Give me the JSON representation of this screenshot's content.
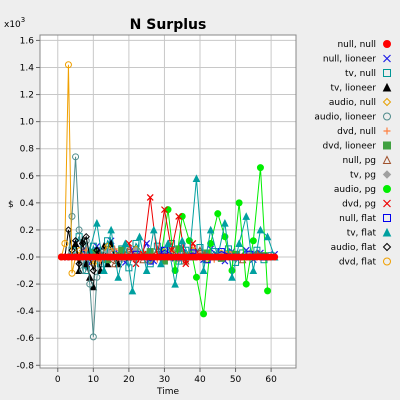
{
  "chart_data": {
    "type": "line",
    "title": "N Surplus",
    "xlabel": "Time",
    "ylabel": "$",
    "y_multiplier": "x10",
    "y_multiplier_exp": "3",
    "xlim": [
      -5,
      67
    ],
    "ylim": [
      -0.82,
      1.64
    ],
    "x_ticks": [
      0,
      10,
      20,
      30,
      40,
      50,
      60
    ],
    "y_ticks": [
      -0.8,
      -0.6,
      -0.4,
      -0.2,
      0.0,
      0.2,
      0.4,
      0.6,
      0.8,
      1.0,
      1.2,
      1.4,
      1.6
    ],
    "y_tick_labels": [
      "-0.8",
      "-0.6",
      "-0.4",
      "-0.2",
      "-0.0",
      "0.2",
      "0.4",
      "0.6",
      "0.8",
      "1.0",
      "1.2",
      "1.4",
      "1.6"
    ],
    "grid": true,
    "legend_position": "right",
    "series": [
      {
        "name": "null, null",
        "color": "#ff0000",
        "marker": "circle-filled",
        "x": [
          1,
          2,
          3,
          4,
          5,
          6,
          7,
          8,
          9,
          10,
          11,
          12,
          13,
          14,
          15,
          16,
          17,
          18,
          19,
          20,
          21,
          22,
          23,
          24,
          25,
          26,
          27,
          28,
          29,
          30,
          31,
          32,
          33,
          34,
          35,
          36,
          37,
          38,
          39,
          40,
          41,
          42,
          43,
          44,
          45,
          46,
          47,
          48,
          49,
          50,
          51,
          52,
          53,
          54,
          55,
          56,
          57,
          58,
          59,
          60,
          61
        ],
        "y": [
          0.0,
          0.0,
          0.0,
          0.0,
          0.0,
          0.0,
          0.0,
          0.0,
          0.0,
          0.0,
          0.0,
          0.0,
          0.0,
          0.0,
          0.0,
          0.0,
          0.0,
          0.0,
          0.0,
          0.0,
          0.0,
          0.0,
          0.0,
          0.0,
          0.0,
          0.0,
          0.0,
          0.0,
          0.0,
          0.0,
          0.0,
          0.0,
          0.0,
          0.0,
          0.0,
          0.0,
          0.0,
          0.0,
          0.0,
          0.0,
          0.0,
          0.0,
          0.0,
          0.0,
          0.0,
          0.0,
          0.0,
          0.0,
          0.0,
          0.0,
          0.0,
          0.0,
          0.0,
          0.0,
          0.0,
          0.0,
          0.0,
          0.0,
          0.0,
          0.0,
          0.0
        ]
      },
      {
        "name": "null, lioneer",
        "color": "#1e1ee6",
        "marker": "x",
        "x": [
          3,
          5,
          7,
          9,
          11,
          13,
          15,
          17,
          19,
          21,
          23,
          25,
          27,
          29,
          31,
          33,
          35,
          37,
          39,
          41,
          43,
          45,
          47,
          49,
          51,
          53,
          55,
          57,
          59,
          61
        ],
        "y": [
          0.0,
          0.1,
          0.05,
          -0.05,
          0.08,
          -0.02,
          0.12,
          0.02,
          -0.04,
          0.06,
          0.0,
          0.1,
          -0.03,
          0.05,
          0.02,
          -0.01,
          0.07,
          0.0,
          0.03,
          -0.02,
          0.06,
          0.01,
          -0.03,
          0.04,
          0.0,
          0.05,
          -0.02,
          0.03,
          0.0,
          0.02
        ]
      },
      {
        "name": "tv, null",
        "color": "#009696",
        "marker": "square-open",
        "x": [
          4,
          6,
          8,
          10,
          12,
          14,
          16,
          18,
          20,
          22,
          24,
          26,
          28,
          30,
          32,
          34,
          36,
          38,
          40,
          42,
          44,
          46,
          48,
          50,
          52,
          54,
          56,
          58,
          60
        ],
        "y": [
          0.05,
          0.15,
          -0.1,
          0.08,
          -0.05,
          0.12,
          0.0,
          0.06,
          -0.08,
          0.1,
          0.02,
          -0.05,
          0.08,
          0.0,
          0.1,
          -0.03,
          0.05,
          0.0,
          0.07,
          -0.02,
          0.04,
          0.0,
          0.06,
          -0.04,
          0.03,
          0.0,
          0.05,
          -0.02,
          0.01
        ]
      },
      {
        "name": "tv, lioneer",
        "color": "#000000",
        "marker": "triangle-filled",
        "x": [
          5,
          6,
          7,
          8,
          9,
          10,
          11,
          12,
          13,
          14,
          15,
          16,
          17,
          18,
          19,
          20
        ],
        "y": [
          0.1,
          -0.1,
          0.12,
          -0.05,
          -0.15,
          -0.22,
          0.05,
          -0.1,
          0.08,
          -0.05,
          0.1,
          0.0,
          -0.05,
          0.02,
          0.0,
          0.0
        ]
      },
      {
        "name": "audio, null",
        "color": "#e6a000",
        "marker": "diamond-open",
        "x": [
          6,
          10,
          14,
          18,
          22,
          26,
          30,
          34,
          38,
          42,
          46,
          50,
          54,
          58
        ],
        "y": [
          0.05,
          -0.05,
          0.08,
          0.0,
          0.06,
          -0.03,
          0.04,
          0.0,
          0.05,
          -0.02,
          0.03,
          0.0,
          0.02,
          0.0
        ]
      },
      {
        "name": "audio, lioneer",
        "color": "#508c8c",
        "marker": "circle-open",
        "x": [
          3,
          4,
          5,
          6,
          7,
          8,
          9,
          10,
          11,
          12,
          13
        ],
        "y": [
          0.0,
          0.3,
          0.74,
          0.2,
          -0.1,
          0.12,
          -0.2,
          -0.59,
          -0.15,
          0.05,
          0.0
        ]
      },
      {
        "name": "dvd, null",
        "color": "#ff8040",
        "marker": "plus",
        "x": [
          8,
          12,
          16,
          20,
          24,
          28,
          32,
          36,
          40,
          44,
          48,
          52,
          56,
          60
        ],
        "y": [
          0.05,
          -0.03,
          0.06,
          0.0,
          0.04,
          -0.02,
          0.05,
          0.0,
          0.03,
          -0.02,
          0.04,
          0.0,
          0.02,
          0.0
        ]
      },
      {
        "name": "dvd, lioneer",
        "color": "#40a040",
        "marker": "square-filled",
        "x": [
          10,
          14,
          18,
          22,
          26,
          30,
          34,
          38,
          42,
          46,
          50,
          54,
          58
        ],
        "y": [
          0.03,
          -0.02,
          0.05,
          0.0,
          0.04,
          -0.03,
          0.06,
          0.0,
          0.03,
          -0.01,
          0.02,
          0.0,
          0.01
        ]
      },
      {
        "name": "null, pg",
        "color": "#a0522d",
        "marker": "triangle-open",
        "x": [
          12,
          16,
          20,
          24,
          28,
          32,
          36,
          40,
          44,
          48,
          52,
          56,
          60
        ],
        "y": [
          0.02,
          -0.05,
          0.06,
          -0.02,
          0.04,
          0.0,
          -0.03,
          0.05,
          0.0,
          0.02,
          -0.02,
          0.03,
          0.0
        ]
      },
      {
        "name": "tv, pg",
        "color": "#a0a0a0",
        "marker": "diamond-filled",
        "x": [
          14,
          18,
          22,
          26,
          30,
          34,
          38,
          42,
          46,
          50,
          54,
          58
        ],
        "y": [
          0.04,
          -0.02,
          0.05,
          0.0,
          0.03,
          -0.02,
          0.04,
          0.0,
          0.02,
          -0.01,
          0.03,
          0.0
        ]
      },
      {
        "name": "audio, pg",
        "color": "#00ee00",
        "marker": "circle-filled",
        "x": [
          29,
          31,
          33,
          35,
          37,
          39,
          41,
          43,
          45,
          47,
          49,
          51,
          53,
          55,
          57,
          59
        ],
        "y": [
          0.0,
          0.35,
          -0.1,
          0.3,
          0.12,
          -0.15,
          -0.42,
          0.1,
          0.32,
          0.15,
          -0.1,
          0.4,
          -0.2,
          0.12,
          0.66,
          -0.25
        ]
      },
      {
        "name": "dvd, pg",
        "color": "#ee0000",
        "marker": "x",
        "x": [
          20,
          22,
          24,
          26,
          28,
          30,
          32,
          34,
          36,
          38,
          40
        ],
        "y": [
          0.1,
          -0.05,
          0.02,
          0.44,
          0.0,
          0.35,
          0.05,
          0.3,
          -0.05,
          0.1,
          0.0
        ]
      },
      {
        "name": "null, flat",
        "color": "#0000ee",
        "marker": "square-open",
        "x": [
          22,
          26,
          30,
          34,
          38,
          42,
          46,
          50,
          54,
          58
        ],
        "y": [
          0.02,
          -0.03,
          0.05,
          0.0,
          0.03,
          -0.02,
          0.04,
          0.0,
          0.02,
          0.0
        ]
      },
      {
        "name": "tv, flat",
        "color": "#00a0a0",
        "marker": "triangle-filled",
        "x": [
          9,
          11,
          13,
          15,
          17,
          19,
          21,
          23,
          25,
          27,
          29,
          31,
          33,
          35,
          37,
          39,
          41,
          43,
          45,
          47,
          49,
          51,
          53,
          55,
          57,
          59,
          61
        ],
        "y": [
          0.05,
          0.25,
          -0.1,
          0.2,
          -0.15,
          0.1,
          -0.25,
          0.15,
          -0.1,
          0.2,
          -0.05,
          0.1,
          -0.2,
          0.12,
          0.0,
          0.58,
          -0.1,
          0.2,
          0.0,
          0.25,
          -0.15,
          0.1,
          0.3,
          -0.1,
          0.2,
          0.15,
          0.0
        ]
      },
      {
        "name": "audio, flat",
        "color": "#000000",
        "marker": "diamond-open",
        "x": [
          2,
          3,
          4,
          5,
          6,
          7,
          8,
          9,
          10,
          11,
          12
        ],
        "y": [
          0.0,
          0.2,
          0.05,
          0.12,
          -0.05,
          0.1,
          0.15,
          0.0,
          -0.1,
          0.05,
          0.0
        ]
      },
      {
        "name": "dvd, flat",
        "color": "#f0a000",
        "marker": "circle-open",
        "x": [
          1,
          2,
          3,
          4,
          5,
          6
        ],
        "y": [
          0.0,
          0.1,
          1.42,
          -0.12,
          0.0,
          0.0
        ]
      }
    ]
  }
}
